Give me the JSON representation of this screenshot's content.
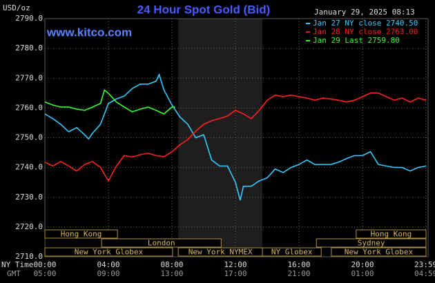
{
  "chart_data": {
    "type": "line",
    "title": "24 Hour Spot Gold (Bid)",
    "unit_label": "USD/oz",
    "timestamp": "January 29, 2025 08:13",
    "site": "www.kitco.com",
    "x_row_label": "NY Time",
    "x2_row_label": "GMT",
    "xlim": [
      0,
      24
    ],
    "ylim": [
      2710,
      2790
    ],
    "yticks": [
      {
        "value": 2710,
        "label": "2710.0"
      },
      {
        "value": 2720,
        "label": "2720.0"
      },
      {
        "value": 2730,
        "label": "2730.0"
      },
      {
        "value": 2740,
        "label": "2740.0"
      },
      {
        "value": 2750,
        "label": "2750.0"
      },
      {
        "value": 2760,
        "label": "2760.0"
      },
      {
        "value": 2770,
        "label": "2770.0"
      },
      {
        "value": 2780,
        "label": "2780.0"
      },
      {
        "value": 2790,
        "label": "2790.0"
      }
    ],
    "xticks": [
      {
        "value": 0,
        "label": "00:00"
      },
      {
        "value": 4,
        "label": "04:00"
      },
      {
        "value": 8,
        "label": "08:00"
      },
      {
        "value": 12,
        "label": "12:00"
      },
      {
        "value": 16,
        "label": "16:00"
      },
      {
        "value": 20,
        "label": "20:00"
      },
      {
        "value": 23.983,
        "label": "23:59"
      }
    ],
    "x2tick_labels": [
      "05:00",
      "09:00",
      "13:00",
      "17:00",
      "21:00",
      "01:00",
      "04:59"
    ],
    "grid": true,
    "session_rows": [
      [
        {
          "label": "Hong Kong",
          "start": 0,
          "end": 4.57
        },
        {
          "label": "Hong Kong",
          "start": 19.6,
          "end": 24
        }
      ],
      [
        {
          "label": "London",
          "start": 3.57,
          "end": 11.1
        },
        {
          "label": "Sydney",
          "start": 17.1,
          "end": 24
        }
      ],
      [
        {
          "label": "New York Globex",
          "start": 0,
          "end": 8.04
        },
        {
          "label": "New York NYMEX",
          "start": 8.4,
          "end": 13.7,
          "shaded": true
        },
        {
          "label": "NY Globex",
          "start": 13.7,
          "end": 17.4
        },
        {
          "label": "New York Globex",
          "start": 18.04,
          "end": 24
        }
      ]
    ],
    "series": [
      {
        "name": "Jan 27 NY close 2740.50",
        "color": "#33ccff",
        "x": [
          0,
          0.5,
          1,
          1.5,
          2,
          2.5,
          2.75,
          3,
          3.5,
          4,
          4.5,
          5,
          5.5,
          6,
          6.5,
          7,
          7.2,
          7.5,
          8,
          8.5,
          9,
          9.5,
          10,
          10.5,
          11,
          11.5,
          12,
          12.3,
          12.5,
          13,
          13.5,
          14,
          14.5,
          15,
          15.5,
          16,
          16.5,
          17,
          17.5,
          18,
          18.5,
          19,
          19.5,
          20,
          20.5,
          21,
          21.5,
          22,
          22.5,
          23,
          23.5,
          24
        ],
        "values": [
          2758,
          2756.4,
          2754.5,
          2752,
          2753.4,
          2751,
          2749.6,
          2751.5,
          2754.5,
          2761.5,
          2763,
          2764,
          2766.5,
          2768,
          2768,
          2769,
          2771.2,
          2766,
          2761,
          2757,
          2754.5,
          2750,
          2751,
          2742.5,
          2740.5,
          2740.5,
          2735,
          2729,
          2733.7,
          2733.7,
          2735.5,
          2736.5,
          2739.5,
          2738.3,
          2740,
          2741,
          2742.5,
          2741,
          2741,
          2741,
          2741.8,
          2743,
          2744,
          2744,
          2745.3,
          2741,
          2740.5,
          2740,
          2740,
          2738.8,
          2740,
          2740.5
        ]
      },
      {
        "name": "Jan 28 NY close 2763.00",
        "color": "#ff2020",
        "x": [
          0,
          0.5,
          1,
          1.5,
          2,
          2.5,
          3,
          3.5,
          4,
          4.5,
          5,
          5.5,
          6,
          6.5,
          7,
          7.5,
          8,
          8.5,
          9,
          9.5,
          10,
          10.5,
          11,
          11.5,
          12,
          12.5,
          13,
          13.5,
          14,
          14.5,
          15,
          15.5,
          16,
          16.5,
          17,
          17.5,
          18,
          18.5,
          19,
          19.5,
          20,
          20.5,
          21,
          21.5,
          22,
          22.5,
          23,
          23.5,
          24
        ],
        "values": [
          2741.8,
          2740.5,
          2742,
          2740.5,
          2738.8,
          2741,
          2742,
          2740,
          2735.5,
          2740.5,
          2744,
          2743.5,
          2744.3,
          2744.8,
          2744,
          2743.6,
          2745.3,
          2747.6,
          2749.4,
          2752.2,
          2754.5,
          2755.7,
          2756.4,
          2757.3,
          2759.2,
          2758,
          2756.4,
          2759.2,
          2762.6,
          2764.3,
          2763.8,
          2764.3,
          2763.8,
          2763.3,
          2762.6,
          2763.3,
          2763,
          2762.6,
          2762,
          2762.6,
          2763.8,
          2765,
          2765,
          2763.8,
          2762.6,
          2763.3,
          2762,
          2763.3,
          2762.6
        ]
      },
      {
        "name": "Jan 29 Last 2759.80",
        "color": "#33ff33",
        "x": [
          0,
          0.5,
          1,
          1.5,
          2,
          2.5,
          3,
          3.5,
          3.75,
          4,
          4.5,
          5,
          5.5,
          6,
          6.5,
          7,
          7.5,
          8,
          8.2
        ],
        "values": [
          2762,
          2761,
          2760.3,
          2760.3,
          2759.6,
          2759.2,
          2760.3,
          2761.5,
          2766,
          2764.9,
          2762,
          2760.3,
          2758.7,
          2759.6,
          2760.3,
          2759.2,
          2758,
          2760.3,
          2760.3
        ]
      }
    ]
  }
}
